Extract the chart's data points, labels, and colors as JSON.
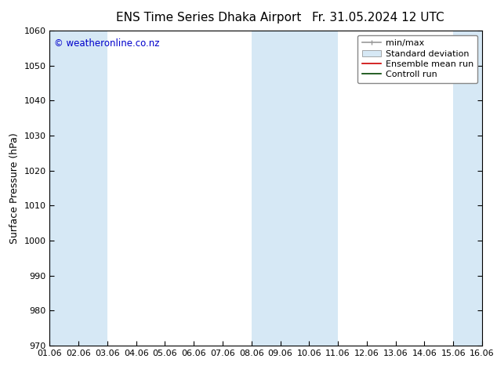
{
  "title_left": "ENS Time Series Dhaka Airport",
  "title_right": "Fr. 31.05.2024 12 UTC",
  "ylabel": "Surface Pressure (hPa)",
  "xlim": [
    0,
    15
  ],
  "ylim": [
    970,
    1060
  ],
  "yticks": [
    970,
    980,
    990,
    1000,
    1010,
    1020,
    1030,
    1040,
    1050,
    1060
  ],
  "xtick_labels": [
    "01.06",
    "02.06",
    "03.06",
    "04.06",
    "05.06",
    "06.06",
    "07.06",
    "08.06",
    "09.06",
    "10.06",
    "11.06",
    "12.06",
    "13.06",
    "14.06",
    "15.06",
    "16.06"
  ],
  "xtick_positions": [
    0,
    1,
    2,
    3,
    4,
    5,
    6,
    7,
    8,
    9,
    10,
    11,
    12,
    13,
    14,
    15
  ],
  "shaded_bands": [
    {
      "x_start": 0.0,
      "x_end": 1.0
    },
    {
      "x_start": 1.0,
      "x_end": 2.0
    },
    {
      "x_start": 7.0,
      "x_end": 8.0
    },
    {
      "x_start": 8.0,
      "x_end": 9.0
    },
    {
      "x_start": 9.0,
      "x_end": 10.0
    },
    {
      "x_start": 14.0,
      "x_end": 15.0
    }
  ],
  "band_color": "#d6e8f5",
  "copyright_text": "© weatheronline.co.nz",
  "copyright_color": "#0000cc",
  "background_color": "#ffffff",
  "plot_bg_color": "#ffffff",
  "legend_entries": [
    {
      "label": "min/max",
      "color": "#999999",
      "lw": 1.2,
      "style": "minmax"
    },
    {
      "label": "Standard deviation",
      "color": "#aabbcc",
      "lw": 8,
      "style": "band"
    },
    {
      "label": "Ensemble mean run",
      "color": "#cc0000",
      "lw": 1.2,
      "style": "line"
    },
    {
      "label": "Controll run",
      "color": "#004400",
      "lw": 1.2,
      "style": "line"
    }
  ],
  "title_fontsize": 11,
  "ylabel_fontsize": 9,
  "tick_fontsize": 8,
  "legend_fontsize": 8
}
